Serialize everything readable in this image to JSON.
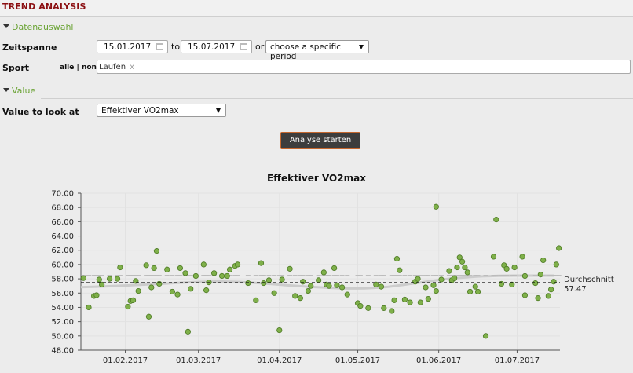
{
  "app": {
    "title": "TREND ANALYSIS"
  },
  "sections": {
    "date": "Datenauswahl",
    "value": "Value"
  },
  "form": {
    "period_label": "Zeitspanne",
    "date_from": "15.01.2017",
    "to_label": "to",
    "date_to": "15.07.2017",
    "or_label": "or",
    "period_select": "choose a specific period",
    "sport_label": "Sport",
    "all_link": "alle",
    "sep": "|",
    "none_link": "none",
    "sport_tag": "Laufen",
    "sport_tag_remove": "x",
    "value_label": "Value to look at",
    "value_select": "Effektiver VO2max",
    "analyse_button": "Analyse starten"
  },
  "chart_data": {
    "type": "scatter",
    "title": "Effektiver VO2max",
    "xlabel": "",
    "ylabel": "",
    "ylim": [
      48,
      70
    ],
    "yticks": [
      "70.00",
      "68.00",
      "66.00",
      "64.00",
      "62.00",
      "60.00",
      "58.00",
      "56.00",
      "54.00",
      "52.00",
      "50.00",
      "48.00"
    ],
    "xlim": [
      "2017-01-15",
      "2017-07-15"
    ],
    "xticks": [
      {
        "date": "2017-02-01",
        "label": "01.02.2017"
      },
      {
        "date": "2017-03-01",
        "label": "01.03.2017"
      },
      {
        "date": "2017-04-01",
        "label": "01.04.2017"
      },
      {
        "date": "2017-05-01",
        "label": "01.05.2017"
      },
      {
        "date": "2017-06-01",
        "label": "01.06.2017"
      },
      {
        "date": "2017-07-01",
        "label": "01.07.2017"
      }
    ],
    "average": {
      "label": "Durchschnitt",
      "value": "57.47"
    },
    "points": [
      [
        "2017-01-16",
        58.1
      ],
      [
        "2017-01-18",
        54.0
      ],
      [
        "2017-01-20",
        55.6
      ],
      [
        "2017-01-21",
        55.7
      ],
      [
        "2017-01-22",
        57.9
      ],
      [
        "2017-01-23",
        57.2
      ],
      [
        "2017-01-26",
        58.0
      ],
      [
        "2017-01-29",
        58.0
      ],
      [
        "2017-01-30",
        59.6
      ],
      [
        "2017-02-02",
        54.1
      ],
      [
        "2017-02-03",
        54.9
      ],
      [
        "2017-02-04",
        55.0
      ],
      [
        "2017-02-05",
        57.7
      ],
      [
        "2017-02-06",
        56.3
      ],
      [
        "2017-02-09",
        59.9
      ],
      [
        "2017-02-10",
        52.7
      ],
      [
        "2017-02-11",
        56.8
      ],
      [
        "2017-02-12",
        59.5
      ],
      [
        "2017-02-13",
        61.9
      ],
      [
        "2017-02-14",
        57.3
      ],
      [
        "2017-02-17",
        59.3
      ],
      [
        "2017-02-19",
        56.2
      ],
      [
        "2017-02-21",
        55.8
      ],
      [
        "2017-02-22",
        59.5
      ],
      [
        "2017-02-25",
        50.6
      ],
      [
        "2017-02-24",
        58.8
      ],
      [
        "2017-02-26",
        56.6
      ],
      [
        "2017-02-28",
        58.4
      ],
      [
        "2017-03-03",
        60.0
      ],
      [
        "2017-03-04",
        56.4
      ],
      [
        "2017-03-05",
        57.5
      ],
      [
        "2017-03-07",
        58.8
      ],
      [
        "2017-03-10",
        58.4
      ],
      [
        "2017-03-12",
        58.4
      ],
      [
        "2017-03-13",
        59.3
      ],
      [
        "2017-03-15",
        59.8
      ],
      [
        "2017-03-16",
        60.0
      ],
      [
        "2017-03-20",
        57.4
      ],
      [
        "2017-03-23",
        55.0
      ],
      [
        "2017-03-25",
        60.2
      ],
      [
        "2017-03-26",
        57.4
      ],
      [
        "2017-03-28",
        57.8
      ],
      [
        "2017-03-30",
        56.0
      ],
      [
        "2017-04-01",
        50.8
      ],
      [
        "2017-04-02",
        57.9
      ],
      [
        "2017-04-05",
        59.4
      ],
      [
        "2017-04-07",
        55.6
      ],
      [
        "2017-04-09",
        55.3
      ],
      [
        "2017-04-10",
        57.6
      ],
      [
        "2017-04-12",
        56.3
      ],
      [
        "2017-04-13",
        57.0
      ],
      [
        "2017-04-16",
        57.8
      ],
      [
        "2017-04-18",
        58.9
      ],
      [
        "2017-04-19",
        57.2
      ],
      [
        "2017-04-20",
        57.0
      ],
      [
        "2017-04-22",
        59.5
      ],
      [
        "2017-04-23",
        57.1
      ],
      [
        "2017-04-25",
        56.8
      ],
      [
        "2017-04-27",
        55.8
      ],
      [
        "2017-05-01",
        54.6
      ],
      [
        "2017-05-02",
        54.2
      ],
      [
        "2017-05-05",
        53.9
      ],
      [
        "2017-05-08",
        57.2
      ],
      [
        "2017-05-10",
        56.9
      ],
      [
        "2017-05-11",
        53.9
      ],
      [
        "2017-05-14",
        53.5
      ],
      [
        "2017-05-15",
        55.0
      ],
      [
        "2017-05-16",
        60.8
      ],
      [
        "2017-05-17",
        59.2
      ],
      [
        "2017-05-19",
        55.1
      ],
      [
        "2017-05-21",
        54.7
      ],
      [
        "2017-05-23",
        57.6
      ],
      [
        "2017-05-24",
        58.0
      ],
      [
        "2017-05-25",
        54.7
      ],
      [
        "2017-05-27",
        56.8
      ],
      [
        "2017-05-28",
        55.2
      ],
      [
        "2017-05-30",
        57.1
      ],
      [
        "2017-05-31",
        56.3
      ],
      [
        "2017-05-31",
        68.1
      ],
      [
        "2017-06-02",
        57.9
      ],
      [
        "2017-06-05",
        59.1
      ],
      [
        "2017-06-06",
        57.8
      ],
      [
        "2017-06-07",
        58.1
      ],
      [
        "2017-06-08",
        59.6
      ],
      [
        "2017-06-09",
        61.0
      ],
      [
        "2017-06-10",
        60.4
      ],
      [
        "2017-06-11",
        59.6
      ],
      [
        "2017-06-12",
        58.9
      ],
      [
        "2017-06-13",
        56.2
      ],
      [
        "2017-06-15",
        56.9
      ],
      [
        "2017-06-16",
        56.2
      ],
      [
        "2017-06-19",
        50.0
      ],
      [
        "2017-06-22",
        61.1
      ],
      [
        "2017-06-23",
        66.3
      ],
      [
        "2017-06-25",
        57.3
      ],
      [
        "2017-06-26",
        59.9
      ],
      [
        "2017-06-27",
        59.4
      ],
      [
        "2017-06-29",
        57.2
      ],
      [
        "2017-06-30",
        59.6
      ],
      [
        "2017-07-03",
        61.1
      ],
      [
        "2017-07-04",
        58.4
      ],
      [
        "2017-07-04",
        55.7
      ],
      [
        "2017-07-08",
        57.4
      ],
      [
        "2017-07-09",
        55.3
      ],
      [
        "2017-07-10",
        58.6
      ],
      [
        "2017-07-11",
        60.6
      ],
      [
        "2017-07-13",
        55.6
      ],
      [
        "2017-07-14",
        56.5
      ],
      [
        "2017-07-15",
        57.6
      ],
      [
        "2017-07-16",
        60.0
      ],
      [
        "2017-07-17",
        62.3
      ]
    ]
  },
  "colors": {
    "accent_red": "#8b0f12",
    "section_green": "#6aa334",
    "point_fill": "#7fb04a",
    "point_stroke": "#4d7a24",
    "button_border": "#c5672e",
    "trend_line": "#cccccc"
  }
}
